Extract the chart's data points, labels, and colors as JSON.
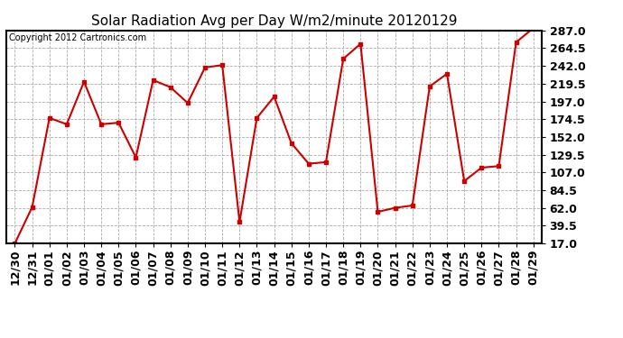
{
  "title": "Solar Radiation Avg per Day W/m2/minute 20120129",
  "copyright": "Copyright 2012 Cartronics.com",
  "dates": [
    "12/30",
    "12/31",
    "01/01",
    "01/02",
    "01/03",
    "01/04",
    "01/05",
    "01/06",
    "01/07",
    "01/08",
    "01/09",
    "01/10",
    "01/11",
    "01/12",
    "01/13",
    "01/14",
    "01/15",
    "01/16",
    "01/17",
    "01/18",
    "01/19",
    "01/20",
    "01/21",
    "01/22",
    "01/23",
    "01/24",
    "01/25",
    "01/26",
    "01/27",
    "01/28",
    "01/29"
  ],
  "values": [
    17.0,
    63.0,
    176.0,
    168.0,
    222.0,
    168.0,
    170.0,
    126.0,
    224.0,
    215.0,
    195.0,
    240.0,
    243.0,
    44.0,
    176.0,
    203.0,
    144.0,
    118.0,
    120.0,
    251.0,
    270.0,
    57.0,
    62.0,
    65.0,
    216.0,
    232.0,
    96.0,
    113.0,
    115.0,
    272.0,
    290.0
  ],
  "line_color": "#cc0000",
  "marker": "s",
  "marker_size": 3,
  "background_color": "#ffffff",
  "plot_bg_color": "#ffffff",
  "grid_color": "#aaaaaa",
  "yticks": [
    17.0,
    39.5,
    62.0,
    84.5,
    107.0,
    129.5,
    152.0,
    174.5,
    197.0,
    219.5,
    242.0,
    264.5,
    287.0
  ],
  "ylim": [
    17.0,
    287.0
  ],
  "title_fontsize": 11,
  "copyright_fontsize": 7,
  "tick_fontsize": 9,
  "ylabel_fontsize": 9
}
